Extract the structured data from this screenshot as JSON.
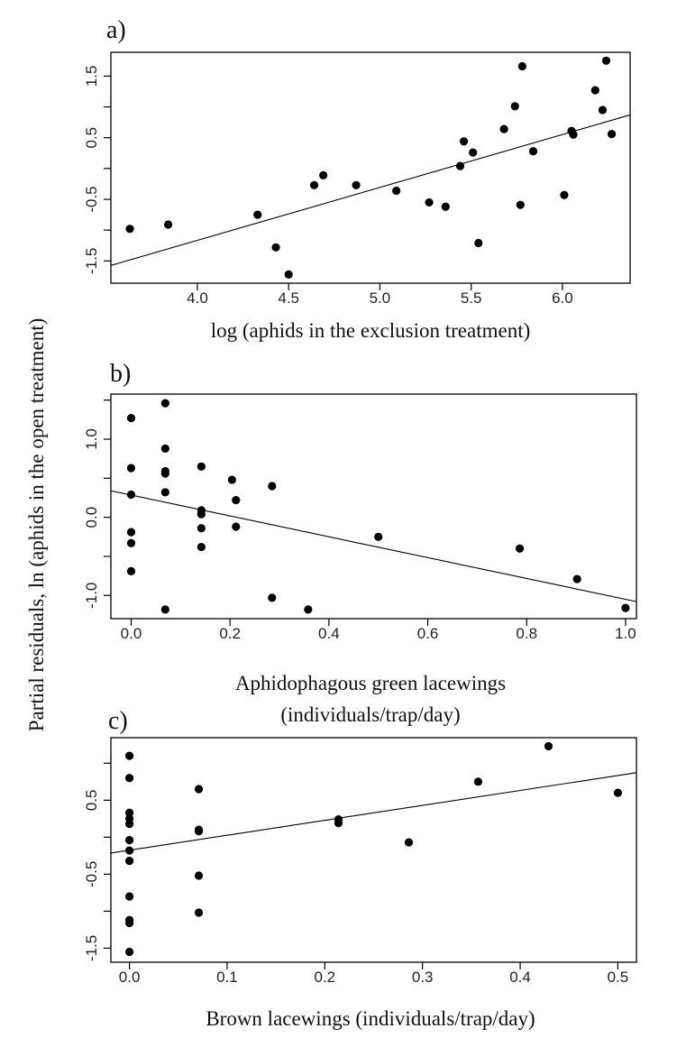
{
  "ylabel": "Partial residuals, ln (aphids in the open treatment)",
  "chart_data": [
    {
      "type": "scatter",
      "panel_label": "a)",
      "xlabel": [
        "log (aphids in the exclusion treatment)"
      ],
      "xlim": [
        3.526,
        6.371
      ],
      "ylim": [
        -1.861,
        1.886
      ],
      "x_ticks": [
        4.0,
        4.5,
        5.0,
        5.5,
        6.0
      ],
      "x_tick_labels": [
        "4.0",
        "4.5",
        "5.0",
        "5.5",
        "6.0"
      ],
      "y_ticks": [
        -1.5,
        -1.0,
        -0.5,
        0.0,
        0.5,
        1.0,
        1.5
      ],
      "y_label_values": [
        -1.5,
        -0.5,
        0.5,
        1.5
      ],
      "y_tick_labels": [
        "-1.5",
        "-0.5",
        "0.5",
        "1.5"
      ],
      "points": [
        [
          3.63,
          -0.98
        ],
        [
          3.84,
          -0.91
        ],
        [
          4.33,
          -0.75
        ],
        [
          4.43,
          -1.28
        ],
        [
          4.5,
          -1.72
        ],
        [
          4.64,
          -0.27
        ],
        [
          4.69,
          -0.11
        ],
        [
          4.87,
          -0.27
        ],
        [
          5.09,
          -0.36
        ],
        [
          5.27,
          -0.55
        ],
        [
          5.36,
          -0.62
        ],
        [
          5.54,
          -1.21
        ],
        [
          5.44,
          0.04
        ],
        [
          5.46,
          0.44
        ],
        [
          5.51,
          0.26
        ],
        [
          5.68,
          0.64
        ],
        [
          5.74,
          1.01
        ],
        [
          5.78,
          1.66
        ],
        [
          5.77,
          -0.59
        ],
        [
          5.84,
          0.28
        ],
        [
          6.01,
          -0.43
        ],
        [
          6.05,
          0.61
        ],
        [
          6.06,
          0.55
        ],
        [
          6.18,
          1.27
        ],
        [
          6.22,
          0.95
        ],
        [
          6.24,
          1.75
        ],
        [
          6.27,
          0.56
        ]
      ],
      "fit_line": [
        [
          3.526,
          -1.573
        ],
        [
          6.371,
          0.87
        ]
      ]
    },
    {
      "type": "scatter",
      "panel_label": "b)",
      "xlabel": [
        "Aphidophagous green lacewings",
        "(individuals/trap/day)"
      ],
      "xlim": [
        -0.041,
        1.022
      ],
      "ylim": [
        -1.297,
        1.577
      ],
      "x_ticks": [
        0.0,
        0.2,
        0.4,
        0.6,
        0.8,
        1.0
      ],
      "x_tick_labels": [
        "0.0",
        "0.2",
        "0.4",
        "0.6",
        "0.8",
        "1.0"
      ],
      "y_ticks": [
        -1.0,
        -0.5,
        0.0,
        0.5,
        1.0,
        1.5
      ],
      "y_label_values": [
        -1.0,
        0.0,
        1.0
      ],
      "y_tick_labels": [
        "-1.0",
        "0.0",
        "1.0"
      ],
      "points": [
        [
          0,
          1.27
        ],
        [
          0,
          0.63
        ],
        [
          0,
          0.29
        ],
        [
          0,
          -0.19
        ],
        [
          0,
          -0.33
        ],
        [
          0,
          -0.69
        ],
        [
          0.069,
          1.46
        ],
        [
          0.069,
          0.88
        ],
        [
          0.069,
          0.59
        ],
        [
          0.069,
          0.56
        ],
        [
          0.069,
          0.32
        ],
        [
          0.069,
          -1.18
        ],
        [
          0.142,
          0.65
        ],
        [
          0.142,
          0.09
        ],
        [
          0.142,
          0.04
        ],
        [
          0.142,
          -0.14
        ],
        [
          0.142,
          -0.38
        ],
        [
          0.204,
          0.48
        ],
        [
          0.212,
          0.22
        ],
        [
          0.212,
          -0.12
        ],
        [
          0.285,
          0.4
        ],
        [
          0.285,
          -1.03
        ],
        [
          0.358,
          -1.18
        ],
        [
          0.5,
          -0.25
        ],
        [
          0.786,
          -0.4
        ],
        [
          0.902,
          -0.79
        ],
        [
          1.0,
          -1.16
        ]
      ],
      "fit_line": [
        [
          -0.041,
          0.339
        ],
        [
          1.022,
          -1.079
        ]
      ]
    },
    {
      "type": "scatter",
      "panel_label": "c)",
      "xlabel": [
        "Brown lacewings (individuals/trap/day)"
      ],
      "xlim": [
        -0.019,
        0.519
      ],
      "ylim": [
        -1.69,
        1.345
      ],
      "x_ticks": [
        0.0,
        0.1,
        0.2,
        0.3,
        0.4,
        0.5
      ],
      "x_tick_labels": [
        "0.0",
        "0.1",
        "0.2",
        "0.3",
        "0.4",
        "0.5"
      ],
      "y_ticks": [
        -1.5,
        -1.0,
        -0.5,
        0.0,
        0.5,
        1.0
      ],
      "y_label_values": [
        -1.5,
        -0.5,
        0.5
      ],
      "y_tick_labels": [
        "-1.5",
        "-0.5",
        "0.5"
      ],
      "points": [
        [
          0,
          1.1
        ],
        [
          0,
          0.8
        ],
        [
          0,
          0.33
        ],
        [
          0,
          0.25
        ],
        [
          0,
          0.18
        ],
        [
          0,
          -0.04
        ],
        [
          0,
          -0.18
        ],
        [
          0,
          -0.32
        ],
        [
          0,
          -0.8
        ],
        [
          0,
          -1.12
        ],
        [
          0,
          -1.16
        ],
        [
          0,
          -1.55
        ],
        [
          0.071,
          0.65
        ],
        [
          0.071,
          0.1
        ],
        [
          0.071,
          0.08
        ],
        [
          0.071,
          -0.52
        ],
        [
          0.071,
          -1.02
        ],
        [
          0.214,
          0.24
        ],
        [
          0.214,
          0.19
        ],
        [
          0.286,
          -0.07
        ],
        [
          0.357,
          0.75
        ],
        [
          0.429,
          1.23
        ],
        [
          0.5,
          0.6
        ]
      ],
      "fit_line": [
        [
          -0.019,
          -0.214
        ],
        [
          0.519,
          0.872
        ]
      ]
    }
  ]
}
